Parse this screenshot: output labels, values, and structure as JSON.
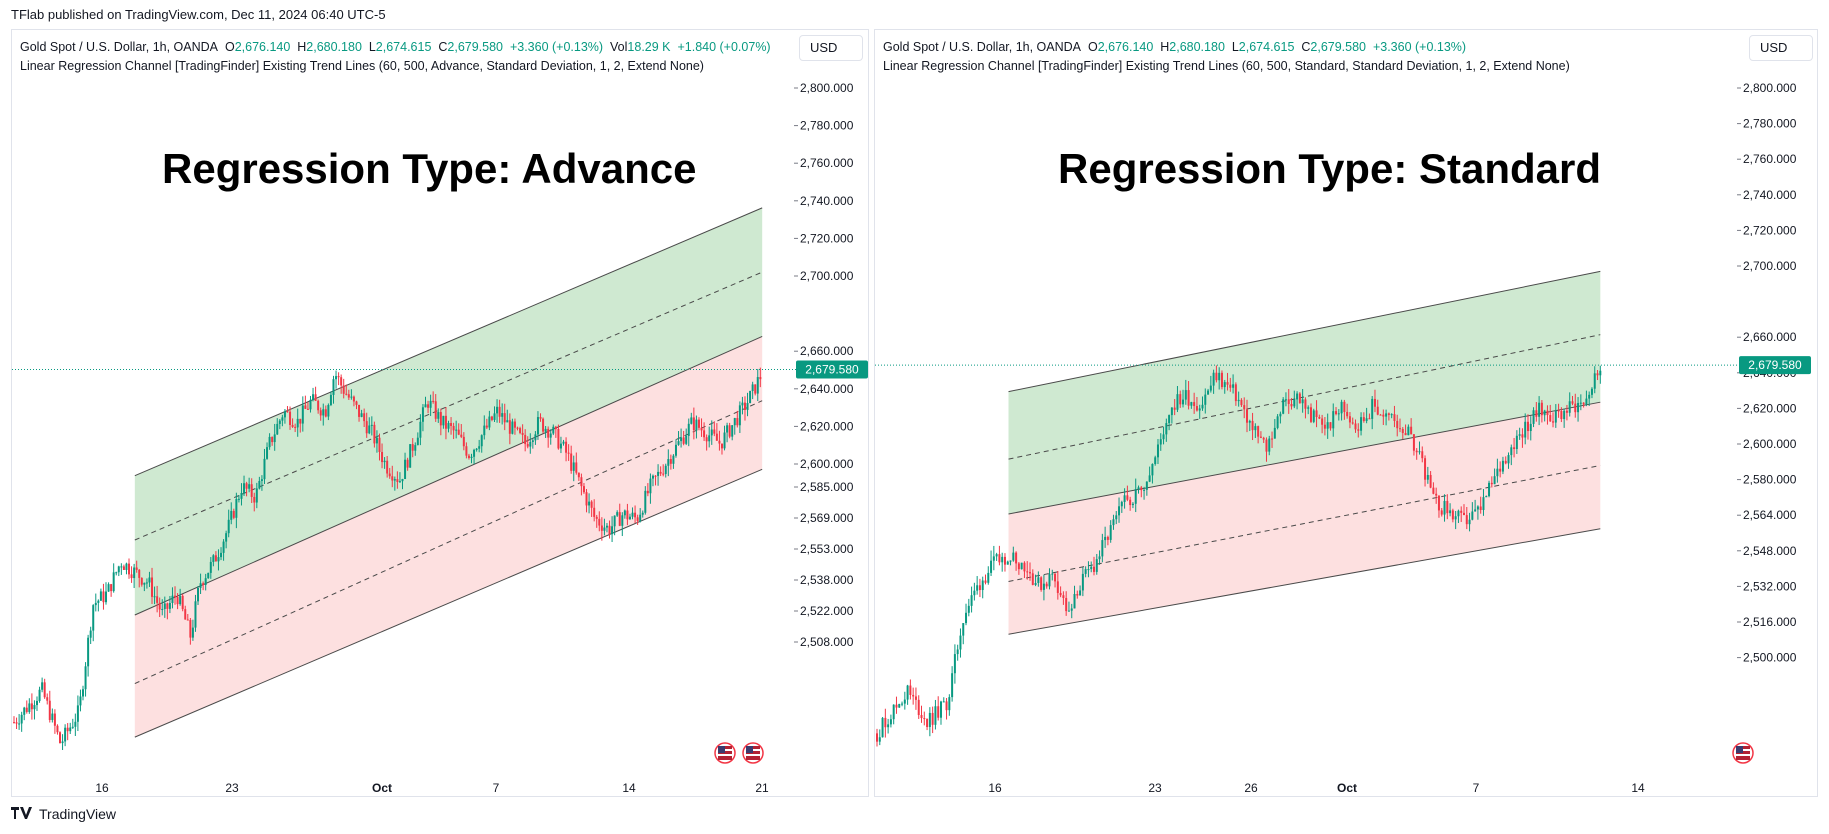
{
  "header": {
    "published": "TFlab published on TradingView.com, Dec 11, 2024 06:40 UTC-5"
  },
  "footer": {
    "brand": "TradingView",
    "logo": "tradingview-logo-icon"
  },
  "colors": {
    "up": "#089981",
    "down": "#f23645",
    "upper_fill": "#cfe9d1",
    "lower_fill": "#fde0e0",
    "price_line": "#089981"
  },
  "chart_data": [
    {
      "type": "candlestick",
      "title": "Regression Type: Advance",
      "legend": {
        "symbol": "Gold Spot / U.S. Dollar, 1h, OANDA",
        "o_label": "O",
        "o": "2,676.140",
        "h_label": "H",
        "h": "2,680.180",
        "l_label": "L",
        "l": "2,674.615",
        "c_label": "C",
        "c": "2,679.580",
        "change": "+3.360 (+0.13%)",
        "vol_label": "Vol",
        "vol": "18.29 K",
        "vol_change": "+1.840 (+0.07%)",
        "indicator": "Linear Regression Channel [TradingFinder] Existing Trend Lines (60, 500, Advance, Standard Deviation, 1, 2, Extend None)"
      },
      "currency": "USD",
      "last_price": "2,679.580",
      "y_ticks": [
        "2,800.000",
        "2,780.000",
        "2,760.000",
        "2,740.000",
        "2,720.000",
        "2,700.000",
        "2,660.000",
        "2,640.000",
        "2,620.000",
        "2,600.000",
        "2,585.000",
        "2,569.000",
        "2,553.000",
        "2,538.000",
        "2,522.000",
        "2,508.000"
      ],
      "x_ticks": [
        "16",
        "23",
        "Oct",
        "7",
        "14",
        "21"
      ],
      "price_path": [
        [
          0,
          2515
        ],
        [
          6,
          2530
        ],
        [
          10,
          2505
        ],
        [
          14,
          2520
        ],
        [
          17,
          2570
        ],
        [
          20,
          2575
        ],
        [
          23,
          2590
        ],
        [
          26,
          2585
        ],
        [
          29,
          2580
        ],
        [
          32,
          2565
        ],
        [
          35,
          2575
        ],
        [
          38,
          2555
        ],
        [
          40,
          2580
        ],
        [
          43,
          2590
        ],
        [
          46,
          2605
        ],
        [
          49,
          2625
        ],
        [
          52,
          2620
        ],
        [
          55,
          2645
        ],
        [
          58,
          2660
        ],
        [
          61,
          2655
        ],
        [
          64,
          2665
        ],
        [
          67,
          2660
        ],
        [
          69,
          2678
        ],
        [
          71,
          2670
        ],
        [
          74,
          2660
        ],
        [
          77,
          2650
        ],
        [
          80,
          2635
        ],
        [
          83,
          2628
        ],
        [
          86,
          2645
        ],
        [
          89,
          2665
        ],
        [
          92,
          2655
        ],
        [
          95,
          2650
        ],
        [
          98,
          2640
        ],
        [
          101,
          2650
        ],
        [
          104,
          2660
        ],
        [
          107,
          2652
        ],
        [
          110,
          2645
        ],
        [
          113,
          2655
        ],
        [
          116,
          2650
        ],
        [
          119,
          2640
        ],
        [
          122,
          2625
        ],
        [
          125,
          2610
        ],
        [
          128,
          2605
        ],
        [
          131,
          2612
        ],
        [
          134,
          2610
        ],
        [
          137,
          2625
        ],
        [
          140,
          2635
        ],
        [
          143,
          2645
        ],
        [
          146,
          2655
        ],
        [
          149,
          2650
        ],
        [
          152,
          2645
        ],
        [
          155,
          2655
        ],
        [
          158,
          2665
        ],
        [
          161,
          2678
        ]
      ],
      "channel": {
        "start_x": 26,
        "end_x": 161,
        "upper": [
          2630,
          2755
        ],
        "mid_upper": [
          2600,
          2725
        ],
        "center": [
          2565,
          2695
        ],
        "mid_lower": [
          2533,
          2665
        ],
        "lower": [
          2508,
          2633
        ]
      }
    },
    {
      "type": "candlestick",
      "title": "Regression Type: Standard",
      "legend": {
        "symbol": "Gold Spot / U.S. Dollar, 1h, OANDA",
        "o_label": "O",
        "o": "2,676.140",
        "h_label": "H",
        "h": "2,680.180",
        "l_label": "L",
        "l": "2,674.615",
        "c_label": "C",
        "c": "2,679.580",
        "change": "+3.360 (+0.13%)",
        "indicator": "Linear Regression Channel [TradingFinder] Existing Trend Lines (60, 500, Standard, Standard Deviation, 1, 2, Extend None)"
      },
      "currency": "USD",
      "last_price": "2,679.580",
      "y_ticks": [
        "2,800.000",
        "2,780.000",
        "2,760.000",
        "2,740.000",
        "2,720.000",
        "2,700.000",
        "2,660.000",
        "2,640.000",
        "2,620.000",
        "2,600.000",
        "2,580.000",
        "2,564.000",
        "2,548.000",
        "2,532.000",
        "2,516.000",
        "2,500.000"
      ],
      "x_ticks": [
        "16",
        "23",
        "26",
        "Oct",
        "7",
        "14"
      ],
      "price_path": [
        [
          0,
          2505
        ],
        [
          6,
          2525
        ],
        [
          10,
          2510
        ],
        [
          14,
          2520
        ],
        [
          17,
          2560
        ],
        [
          20,
          2575
        ],
        [
          23,
          2585
        ],
        [
          26,
          2590
        ],
        [
          29,
          2585
        ],
        [
          32,
          2575
        ],
        [
          35,
          2580
        ],
        [
          38,
          2560
        ],
        [
          40,
          2575
        ],
        [
          43,
          2585
        ],
        [
          46,
          2600
        ],
        [
          49,
          2615
        ],
        [
          52,
          2620
        ],
        [
          55,
          2635
        ],
        [
          58,
          2660
        ],
        [
          61,
          2665
        ],
        [
          64,
          2660
        ],
        [
          67,
          2675
        ],
        [
          69,
          2670
        ],
        [
          71,
          2665
        ],
        [
          74,
          2650
        ],
        [
          77,
          2640
        ],
        [
          80,
          2660
        ],
        [
          83,
          2665
        ],
        [
          86,
          2655
        ],
        [
          89,
          2650
        ],
        [
          92,
          2660
        ],
        [
          95,
          2650
        ],
        [
          98,
          2660
        ],
        [
          101,
          2655
        ],
        [
          104,
          2650
        ],
        [
          107,
          2640
        ],
        [
          110,
          2615
        ],
        [
          113,
          2610
        ],
        [
          116,
          2605
        ],
        [
          119,
          2610
        ],
        [
          122,
          2625
        ],
        [
          125,
          2640
        ],
        [
          128,
          2650
        ],
        [
          131,
          2658
        ],
        [
          134,
          2655
        ],
        [
          137,
          2660
        ],
        [
          140,
          2663
        ],
        [
          143,
          2679
        ]
      ],
      "channel": {
        "start_x": 26,
        "end_x": 143,
        "upper": [
          2667,
          2724
        ],
        "mid_upper": [
          2635,
          2694
        ],
        "center": [
          2609,
          2662
        ],
        "mid_lower": [
          2577,
          2632
        ],
        "lower": [
          2552,
          2602
        ]
      }
    }
  ]
}
